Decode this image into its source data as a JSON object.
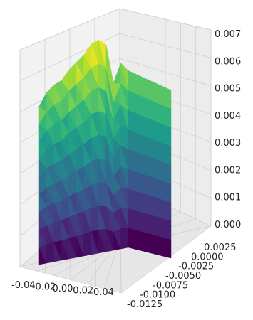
{
  "chart_data": {
    "type": "surface",
    "colormap": "viridis",
    "title": "",
    "xlabel": "",
    "ylabel": "",
    "zlabel": "",
    "grid": true,
    "xlim": [
      -0.04,
      0.04
    ],
    "ylim": [
      -0.0125,
      0.0025
    ],
    "zlim": [
      0.0,
      0.007
    ],
    "x_ticks": [
      "-0.04",
      "-0.02",
      "0.00",
      "0.02",
      "0.04"
    ],
    "y_ticks": [
      "0.0025",
      "0.0000",
      "-0.0025",
      "-0.0050",
      "-0.0075",
      "-0.0100",
      "-0.0125"
    ],
    "z_ticks": [
      "0.000",
      "0.001",
      "0.002",
      "0.003",
      "0.004",
      "0.005",
      "0.006",
      "0.007"
    ],
    "surface_z_profile": [
      0.0052,
      0.0056,
      0.0058,
      0.0059,
      0.0062,
      0.0064,
      0.0066,
      0.0069,
      0.007,
      0.0068,
      0.0055,
      0.0061,
      0.0058
    ]
  }
}
